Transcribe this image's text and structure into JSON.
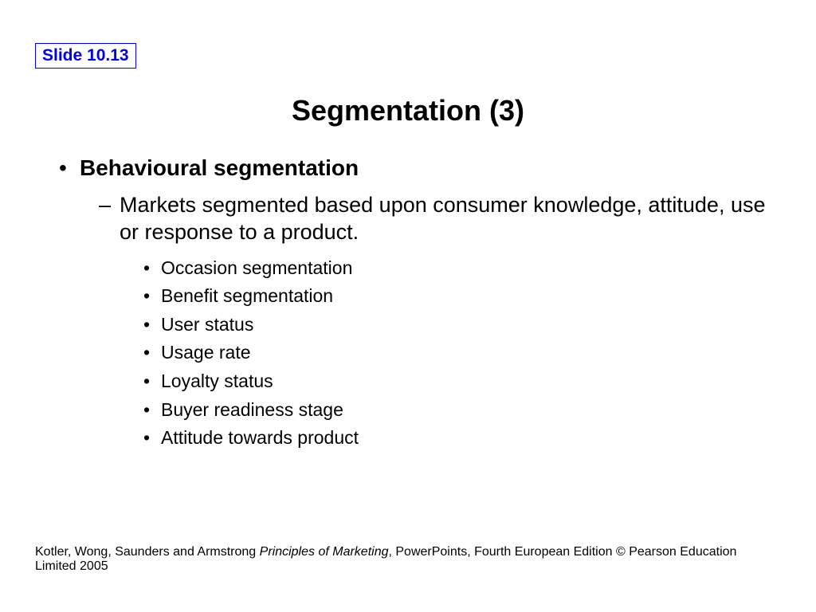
{
  "slide_number": "Slide 10.13",
  "title": "Segmentation (3)",
  "bullets": {
    "main": "Behavioural segmentation",
    "sub": "Markets segmented based upon consumer knowledge, attitude, use or response to a product.",
    "items": [
      "Occasion segmentation",
      "Benefit segmentation",
      "User status",
      "Usage rate",
      "Loyalty status",
      "Buyer readiness stage",
      "Attitude towards product"
    ]
  },
  "footer": {
    "authors": "Kotler, Wong, Saunders and Armstrong ",
    "book": "Principles of Marketing",
    "rest": ", PowerPoints, Fourth European Edition © Pearson Education Limited 2005"
  },
  "colors": {
    "slide_number_border": "#0000ee",
    "slide_number_text": "#0000ee",
    "background": "#ffffff",
    "text": "#000000"
  },
  "typography": {
    "slide_number_fontsize": 21,
    "title_fontsize": 36,
    "level1_fontsize": 28,
    "level2_fontsize": 27,
    "level3_fontsize": 23,
    "footer_fontsize": 16,
    "font_family": "Arial"
  }
}
